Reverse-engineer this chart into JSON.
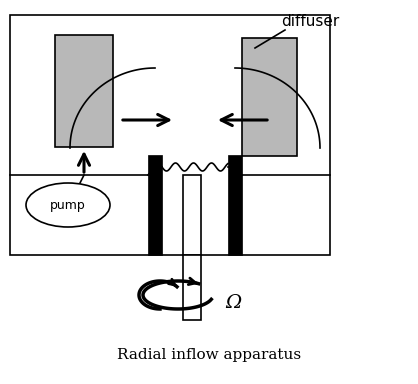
{
  "title": "Radial inflow apparatus",
  "diffuser_label": "diffuser",
  "pump_label": "pump",
  "omega_label": "Ω",
  "bg_color": "#ffffff",
  "box_color": "#000000",
  "gray_color": "#b8b8b8",
  "dark_color": "#000000",
  "fig_width": 4.18,
  "fig_height": 3.84
}
